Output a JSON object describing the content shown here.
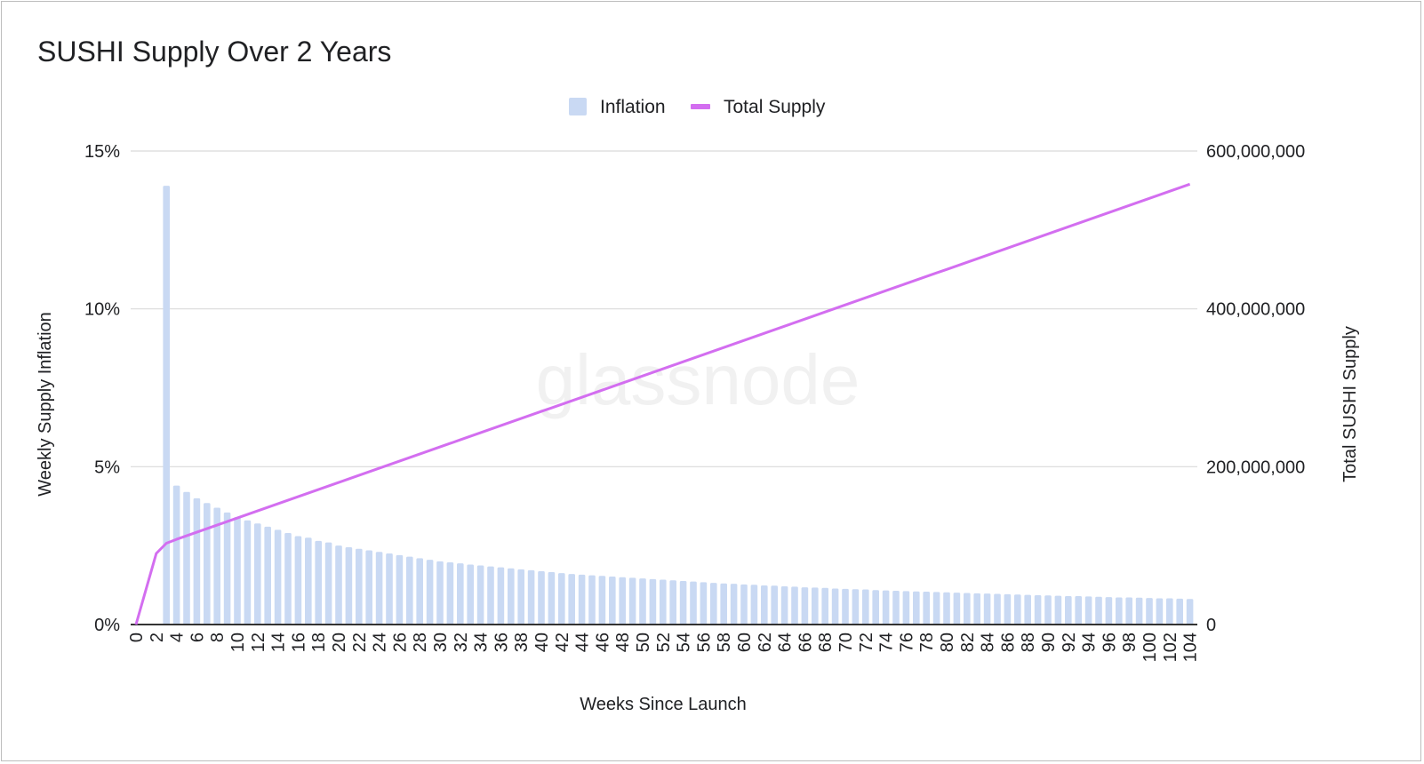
{
  "chart_data": {
    "title": "SUSHI Supply Over 2 Years",
    "watermark": "glassnode",
    "xlabel": "Weeks Since Launch",
    "ylabel_left": "Weekly Supply Inflation",
    "ylabel_right": "Total SUSHI Supply",
    "x": [
      0,
      1,
      2,
      3,
      4,
      5,
      6,
      7,
      8,
      9,
      10,
      11,
      12,
      13,
      14,
      15,
      16,
      17,
      18,
      19,
      20,
      21,
      22,
      23,
      24,
      25,
      26,
      27,
      28,
      29,
      30,
      31,
      32,
      33,
      34,
      35,
      36,
      37,
      38,
      39,
      40,
      41,
      42,
      43,
      44,
      45,
      46,
      47,
      48,
      49,
      50,
      51,
      52,
      53,
      54,
      55,
      56,
      57,
      58,
      59,
      60,
      61,
      62,
      63,
      64,
      65,
      66,
      67,
      68,
      69,
      70,
      71,
      72,
      73,
      74,
      75,
      76,
      77,
      78,
      79,
      80,
      81,
      82,
      83,
      84,
      85,
      86,
      87,
      88,
      89,
      90,
      91,
      92,
      93,
      94,
      95,
      96,
      97,
      98,
      99,
      100,
      101,
      102,
      103,
      104
    ],
    "x_tick_labels": [
      "0",
      "2",
      "4",
      "6",
      "8",
      "10",
      "12",
      "14",
      "16",
      "18",
      "20",
      "22",
      "24",
      "26",
      "28",
      "30",
      "32",
      "34",
      "36",
      "38",
      "40",
      "42",
      "44",
      "46",
      "48",
      "50",
      "52",
      "54",
      "56",
      "58",
      "60",
      "62",
      "64",
      "66",
      "68",
      "70",
      "72",
      "74",
      "76",
      "78",
      "80",
      "82",
      "84",
      "86",
      "88",
      "90",
      "92",
      "94",
      "96",
      "98",
      "100",
      "102",
      "104"
    ],
    "left_axis": {
      "ticks": [
        "0%",
        "5%",
        "10%",
        "15%"
      ],
      "ylim": [
        0,
        15
      ]
    },
    "right_axis": {
      "ticks": [
        "0",
        "200,000,000",
        "400,000,000",
        "600,000,000"
      ],
      "ylim": [
        0,
        600000000
      ]
    },
    "legend": [
      "Inflation",
      "Total Supply"
    ],
    "legend_position": "top",
    "grid": true,
    "series": [
      {
        "name": "Inflation",
        "type": "bar",
        "color": "#c9d9f3",
        "values": [
          0,
          0,
          0,
          13.9,
          4.4,
          4.2,
          4.0,
          3.85,
          3.7,
          3.55,
          3.4,
          3.3,
          3.2,
          3.1,
          3.0,
          2.9,
          2.8,
          2.75,
          2.65,
          2.6,
          2.5,
          2.45,
          2.4,
          2.35,
          2.3,
          2.25,
          2.2,
          2.15,
          2.1,
          2.05,
          2.0,
          1.97,
          1.94,
          1.9,
          1.87,
          1.84,
          1.81,
          1.78,
          1.75,
          1.72,
          1.69,
          1.66,
          1.63,
          1.6,
          1.58,
          1.56,
          1.54,
          1.52,
          1.5,
          1.48,
          1.46,
          1.44,
          1.42,
          1.4,
          1.38,
          1.36,
          1.34,
          1.32,
          1.3,
          1.29,
          1.27,
          1.26,
          1.24,
          1.23,
          1.21,
          1.2,
          1.18,
          1.17,
          1.16,
          1.14,
          1.13,
          1.12,
          1.11,
          1.09,
          1.08,
          1.07,
          1.06,
          1.05,
          1.04,
          1.03,
          1.02,
          1.01,
          1.0,
          0.99,
          0.98,
          0.97,
          0.96,
          0.95,
          0.94,
          0.93,
          0.92,
          0.91,
          0.9,
          0.9,
          0.89,
          0.88,
          0.87,
          0.86,
          0.86,
          0.85,
          0.84,
          0.83,
          0.83,
          0.82,
          0.81
        ]
      },
      {
        "name": "Total Supply",
        "type": "line",
        "color": "#d36ef0",
        "values": [
          0,
          45000000,
          90000000,
          103000000,
          108000000,
          112500000,
          117000000,
          121500000,
          126000000,
          130500000,
          135000000,
          139500000,
          144000000,
          148500000,
          153000000,
          157500000,
          162000000,
          166500000,
          171000000,
          175500000,
          180000000,
          184500000,
          189000000,
          193500000,
          198000000,
          202500000,
          207000000,
          211500000,
          216000000,
          220500000,
          225000000,
          229500000,
          234000000,
          238500000,
          243000000,
          247500000,
          252000000,
          256500000,
          261000000,
          265500000,
          270000000,
          274500000,
          279000000,
          283500000,
          288000000,
          292500000,
          297000000,
          301500000,
          306000000,
          310500000,
          315000000,
          319500000,
          324000000,
          328500000,
          333000000,
          337500000,
          342000000,
          346500000,
          351000000,
          355500000,
          360000000,
          364500000,
          369000000,
          373500000,
          378000000,
          382500000,
          387000000,
          391500000,
          396000000,
          400500000,
          405000000,
          409500000,
          414000000,
          418500000,
          423000000,
          427500000,
          432000000,
          436500000,
          441000000,
          445500000,
          450000000,
          454500000,
          459000000,
          463500000,
          468000000,
          472500000,
          477000000,
          481500000,
          486000000,
          490500000,
          495000000,
          499500000,
          504000000,
          508500000,
          513000000,
          517500000,
          522000000,
          526500000,
          531000000,
          535500000,
          540000000,
          544500000,
          549000000,
          553500000,
          558000000
        ]
      }
    ],
    "colors": {
      "gridline": "#d9d9d9",
      "baseline": "#333333",
      "text": "#202124"
    }
  }
}
